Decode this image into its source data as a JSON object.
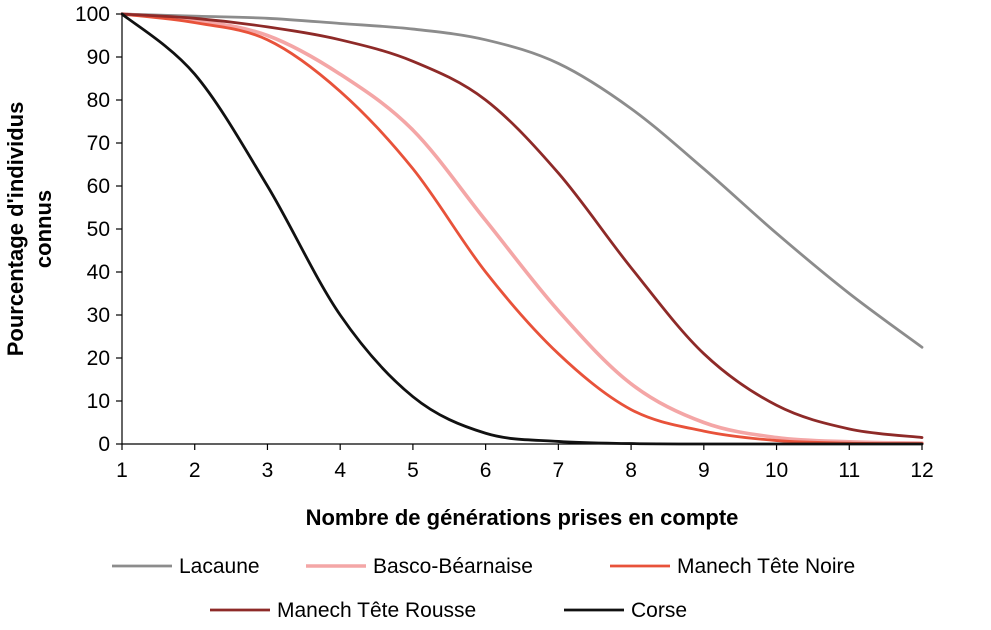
{
  "chart_data": {
    "type": "line",
    "title": "",
    "xlabel": "Nombre de générations prises en compte",
    "ylabel_line1": "Pourcentage d'individus",
    "ylabel_line2": "connus",
    "xlim": [
      1,
      12
    ],
    "ylim": [
      0,
      100
    ],
    "x_ticks": [
      1,
      2,
      3,
      4,
      5,
      6,
      7,
      8,
      9,
      10,
      11,
      12
    ],
    "y_ticks": [
      0,
      10,
      20,
      30,
      40,
      50,
      60,
      70,
      80,
      90,
      100
    ],
    "grid": false,
    "legend_position": "bottom",
    "x": [
      1,
      2,
      3,
      4,
      5,
      6,
      7,
      8,
      9,
      10,
      11,
      12
    ],
    "series": [
      {
        "name": "Lacaune",
        "color": "#8c8c8c",
        "values": [
          100,
          99.5,
          99,
          97.8,
          96.5,
          94,
          88.5,
          78,
          64,
          49,
          35,
          22.5
        ]
      },
      {
        "name": "Basco-Béarnaise",
        "color": "#f4a6a6",
        "values": [
          100,
          98.5,
          95,
          86,
          73,
          52,
          31,
          14,
          5,
          1.5,
          0.5,
          0.2
        ]
      },
      {
        "name": "Manech Tête Noire",
        "color": "#e8523a",
        "values": [
          100,
          98,
          94,
          82,
          64,
          40,
          21,
          8,
          3,
          0.8,
          0.2,
          0.1
        ]
      },
      {
        "name": "Manech Tête Rousse",
        "color": "#8e2a28",
        "values": [
          100,
          99,
          97,
          94,
          89,
          80,
          63,
          41,
          21,
          9,
          3.5,
          1.5
        ]
      },
      {
        "name": "Corse",
        "color": "#111111",
        "values": [
          100,
          86,
          60,
          30,
          11,
          2.5,
          0.6,
          0.1,
          0,
          0,
          0,
          0
        ]
      }
    ]
  }
}
